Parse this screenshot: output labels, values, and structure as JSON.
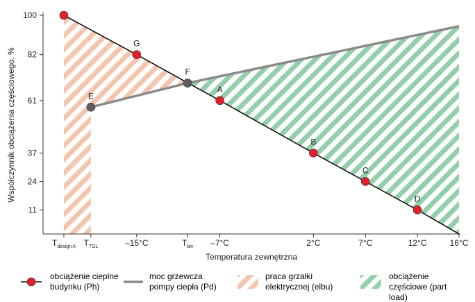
{
  "chart_data": {
    "type": "line",
    "y_label": "Współczynnik obciążenia częściowego, %",
    "x_label": "Temperatura zewnętrzna",
    "xlim": [
      -24,
      16
    ],
    "ylim": [
      0,
      100
    ],
    "yticks": [
      11,
      24,
      37,
      61,
      82,
      100
    ],
    "xticks": [
      {
        "value": -22,
        "label": "T",
        "label_sub": "design,h"
      },
      {
        "value": -19.4,
        "label": "T",
        "label_sub": "TOL"
      },
      {
        "value": -15,
        "label": "–15°C"
      },
      {
        "value": -10.1,
        "label": "T",
        "label_sub": "biv"
      },
      {
        "value": -7,
        "label": "–7°C"
      },
      {
        "value": 2,
        "label": "2°C"
      },
      {
        "value": 7,
        "label": "7°C"
      },
      {
        "value": 12,
        "label": "12°C"
      },
      {
        "value": 16,
        "label": "16°C"
      }
    ],
    "grid": false,
    "series": [
      {
        "name": "obciążenie cieplne budynku (Ph)",
        "color": "#111111",
        "marker_color": "#e0202a",
        "x": [
          -22,
          -15,
          -7,
          2,
          7,
          12,
          16
        ],
        "values": [
          100,
          82,
          61,
          37,
          24,
          11,
          0
        ],
        "point_labels": [
          null,
          "G",
          "A",
          "B",
          "C",
          "D",
          null
        ],
        "markers": [
          true,
          true,
          true,
          true,
          true,
          true,
          false
        ]
      },
      {
        "name": "moc grzewcza pompy ciepła (Pd)",
        "color": "#8a8a8a",
        "marker_color": "#5e5e5e",
        "x": [
          -19.4,
          -10.1,
          16
        ],
        "values": [
          58,
          69,
          95
        ],
        "point_labels": [
          "E",
          "F",
          null
        ],
        "markers": [
          true,
          true,
          false
        ]
      }
    ],
    "areas": [
      {
        "name": "praca grzałki elektrycznej (elbu)",
        "color": "#f4c6ae"
      },
      {
        "name": "obciążenie częściowe (part load)",
        "color": "#93cfaa"
      }
    ]
  }
}
